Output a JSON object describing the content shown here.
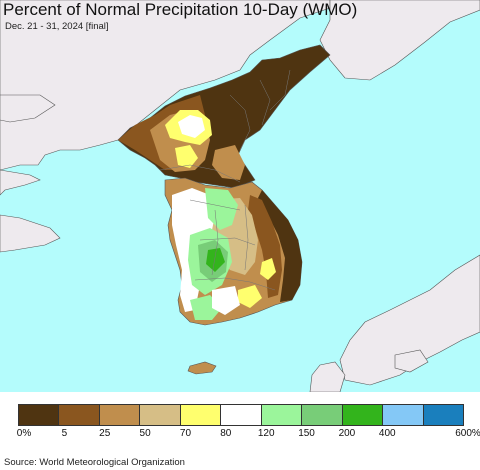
{
  "header": {
    "title": "Percent of Normal Precipitation 10-Day (WMO)",
    "subtitle": "Dec. 21 - 31, 2024 [final]"
  },
  "legend": {
    "colors": [
      "#4f3411",
      "#8a561f",
      "#c08e4d",
      "#d6be86",
      "#ffff6e",
      "#ffffff",
      "#9bf59b",
      "#78cd78",
      "#33b41c",
      "#84c8f6",
      "#1a7fbd"
    ],
    "labels": [
      "0%",
      "5",
      "25",
      "50",
      "70",
      "80",
      "120",
      "150",
      "200",
      "400",
      "600%"
    ]
  },
  "footer": {
    "source": "Source: World Meteorological Organization"
  },
  "map_colors": {
    "ocean": "#b4fcfc",
    "land_outside": "#eeeaee",
    "border": "#555555"
  }
}
